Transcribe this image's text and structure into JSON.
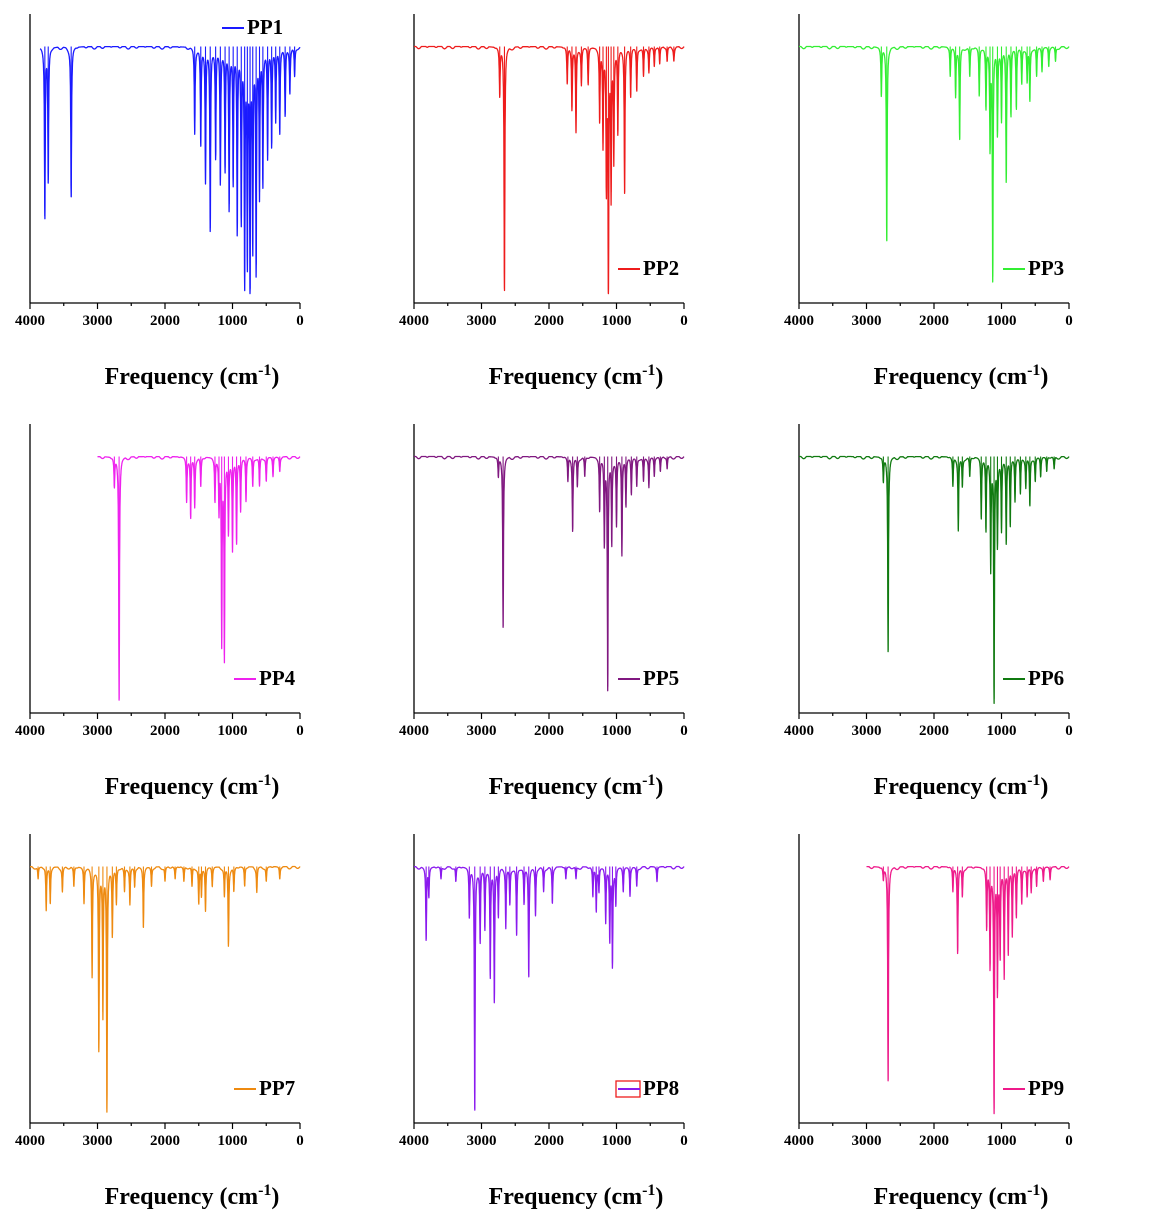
{
  "xlabel_prefix": "Frequency (cm",
  "xlabel_exp": "-1",
  "xlabel_suffix": ")",
  "chart_data": [
    {
      "type": "line",
      "series": [
        {
          "name": "PP1",
          "color": "#1a1aff"
        }
      ],
      "xlim": [
        4000,
        0
      ],
      "ylim": [
        0,
        1
      ],
      "reversed_x": true,
      "x_ticks": [
        "4000",
        "3000",
        "2000",
        "1000",
        "0"
      ],
      "legend_position": "top-right",
      "data_range": [
        3850,
        0
      ],
      "peaks": [
        [
          3780,
          0.7
        ],
        [
          3730,
          0.55
        ],
        [
          3390,
          0.62
        ],
        [
          1560,
          0.35
        ],
        [
          1470,
          0.4
        ],
        [
          1400,
          0.55
        ],
        [
          1330,
          0.75
        ],
        [
          1250,
          0.45
        ],
        [
          1180,
          0.55
        ],
        [
          1110,
          0.5
        ],
        [
          1050,
          0.65
        ],
        [
          990,
          0.55
        ],
        [
          930,
          0.75
        ],
        [
          870,
          0.7
        ],
        [
          820,
          0.95
        ],
        [
          780,
          0.85
        ],
        [
          740,
          1.0
        ],
        [
          700,
          0.8
        ],
        [
          650,
          0.9
        ],
        [
          600,
          0.6
        ],
        [
          550,
          0.55
        ],
        [
          480,
          0.45
        ],
        [
          420,
          0.4
        ],
        [
          360,
          0.3
        ],
        [
          300,
          0.35
        ],
        [
          220,
          0.28
        ],
        [
          150,
          0.18
        ],
        [
          80,
          0.12
        ]
      ]
    },
    {
      "type": "line",
      "series": [
        {
          "name": "PP2",
          "color": "#ee1c1c"
        }
      ],
      "xlim": [
        4000,
        0
      ],
      "ylim": [
        0,
        1
      ],
      "reversed_x": true,
      "x_ticks": [
        "4000",
        "3000",
        "2000",
        "1000",
        "0"
      ],
      "legend_position": "bottom-right",
      "data_range": [
        4000,
        0
      ],
      "peaks": [
        [
          2730,
          0.2
        ],
        [
          2660,
          1.0
        ],
        [
          1730,
          0.15
        ],
        [
          1660,
          0.25
        ],
        [
          1600,
          0.35
        ],
        [
          1520,
          0.15
        ],
        [
          1420,
          0.15
        ],
        [
          1250,
          0.3
        ],
        [
          1200,
          0.4
        ],
        [
          1150,
          0.55
        ],
        [
          1120,
          1.02
        ],
        [
          1080,
          0.6
        ],
        [
          1040,
          0.45
        ],
        [
          980,
          0.35
        ],
        [
          880,
          0.6
        ],
        [
          790,
          0.2
        ],
        [
          700,
          0.18
        ],
        [
          600,
          0.12
        ],
        [
          520,
          0.1
        ],
        [
          440,
          0.08
        ],
        [
          360,
          0.07
        ],
        [
          250,
          0.06
        ],
        [
          150,
          0.05
        ]
      ]
    },
    {
      "type": "line",
      "series": [
        {
          "name": "PP3",
          "color": "#33ee33"
        }
      ],
      "xlim": [
        4000,
        0
      ],
      "ylim": [
        0,
        1
      ],
      "reversed_x": true,
      "x_ticks": [
        "4000",
        "3000",
        "2000",
        "1000",
        "0"
      ],
      "legend_position": "bottom-right",
      "data_range": [
        4000,
        0
      ],
      "peaks": [
        [
          2780,
          0.2
        ],
        [
          2700,
          0.8
        ],
        [
          1760,
          0.12
        ],
        [
          1680,
          0.2
        ],
        [
          1620,
          0.38
        ],
        [
          1470,
          0.12
        ],
        [
          1330,
          0.2
        ],
        [
          1230,
          0.25
        ],
        [
          1170,
          0.4
        ],
        [
          1130,
          0.95
        ],
        [
          1060,
          0.35
        ],
        [
          1000,
          0.3
        ],
        [
          930,
          0.55
        ],
        [
          860,
          0.28
        ],
        [
          780,
          0.25
        ],
        [
          700,
          0.15
        ],
        [
          620,
          0.14
        ],
        [
          580,
          0.22
        ],
        [
          480,
          0.12
        ],
        [
          400,
          0.1
        ],
        [
          300,
          0.08
        ],
        [
          200,
          0.06
        ]
      ]
    },
    {
      "type": "line",
      "series": [
        {
          "name": "PP4",
          "color": "#ee22ee"
        }
      ],
      "xlim": [
        4000,
        0
      ],
      "ylim": [
        0,
        1
      ],
      "reversed_x": true,
      "x_ticks": [
        "4000",
        "3000",
        "2000",
        "1000",
        "0"
      ],
      "legend_position": "bottom-right",
      "data_range": [
        3000,
        0
      ],
      "peaks": [
        [
          2750,
          0.12
        ],
        [
          2680,
          1.0
        ],
        [
          1680,
          0.18
        ],
        [
          1620,
          0.25
        ],
        [
          1560,
          0.2
        ],
        [
          1470,
          0.12
        ],
        [
          1260,
          0.18
        ],
        [
          1200,
          0.22
        ],
        [
          1160,
          0.75
        ],
        [
          1120,
          0.82
        ],
        [
          1060,
          0.3
        ],
        [
          1000,
          0.38
        ],
        [
          940,
          0.35
        ],
        [
          880,
          0.22
        ],
        [
          800,
          0.18
        ],
        [
          700,
          0.12
        ],
        [
          600,
          0.12
        ],
        [
          500,
          0.1
        ],
        [
          400,
          0.08
        ],
        [
          300,
          0.06
        ]
      ]
    },
    {
      "type": "line",
      "series": [
        {
          "name": "PP5",
          "color": "#801880"
        }
      ],
      "xlim": [
        4000,
        0
      ],
      "ylim": [
        0,
        1
      ],
      "reversed_x": true,
      "x_ticks": [
        "4000",
        "3000",
        "2000",
        "1000",
        "0"
      ],
      "legend_position": "bottom-right",
      "data_range": [
        4000,
        0
      ],
      "peaks": [
        [
          2750,
          0.08
        ],
        [
          2680,
          0.7
        ],
        [
          1720,
          0.1
        ],
        [
          1650,
          0.3
        ],
        [
          1580,
          0.12
        ],
        [
          1470,
          0.08
        ],
        [
          1250,
          0.22
        ],
        [
          1180,
          0.35
        ],
        [
          1130,
          0.95
        ],
        [
          1070,
          0.35
        ],
        [
          1000,
          0.28
        ],
        [
          920,
          0.4
        ],
        [
          860,
          0.2
        ],
        [
          780,
          0.15
        ],
        [
          700,
          0.12
        ],
        [
          600,
          0.1
        ],
        [
          520,
          0.12
        ],
        [
          440,
          0.08
        ],
        [
          350,
          0.06
        ],
        [
          250,
          0.05
        ]
      ]
    },
    {
      "type": "line",
      "series": [
        {
          "name": "PP6",
          "color": "#107a10"
        }
      ],
      "xlim": [
        4000,
        0
      ],
      "ylim": [
        0,
        1
      ],
      "reversed_x": true,
      "x_ticks": [
        "4000",
        "3000",
        "2000",
        "1000",
        "0"
      ],
      "legend_position": "bottom-right",
      "data_range": [
        4000,
        0
      ],
      "peaks": [
        [
          2750,
          0.1
        ],
        [
          2680,
          0.8
        ],
        [
          1720,
          0.12
        ],
        [
          1640,
          0.3
        ],
        [
          1580,
          0.12
        ],
        [
          1470,
          0.08
        ],
        [
          1300,
          0.25
        ],
        [
          1230,
          0.3
        ],
        [
          1160,
          0.45
        ],
        [
          1110,
          1.0
        ],
        [
          1060,
          0.35
        ],
        [
          1000,
          0.3
        ],
        [
          930,
          0.35
        ],
        [
          870,
          0.28
        ],
        [
          800,
          0.18
        ],
        [
          720,
          0.15
        ],
        [
          640,
          0.12
        ],
        [
          580,
          0.2
        ],
        [
          500,
          0.1
        ],
        [
          420,
          0.08
        ],
        [
          330,
          0.06
        ],
        [
          220,
          0.05
        ]
      ]
    },
    {
      "type": "line",
      "series": [
        {
          "name": "PP7",
          "color": "#ee8a10"
        }
      ],
      "xlim": [
        4000,
        0
      ],
      "ylim": [
        0,
        1
      ],
      "reversed_x": true,
      "x_ticks": [
        "4000",
        "3000",
        "2000",
        "1000",
        "0"
      ],
      "legend_position": "bottom-right",
      "data_range": [
        4000,
        0
      ],
      "peaks": [
        [
          3880,
          0.05
        ],
        [
          3760,
          0.18
        ],
        [
          3700,
          0.15
        ],
        [
          3520,
          0.1
        ],
        [
          3350,
          0.08
        ],
        [
          3200,
          0.15
        ],
        [
          3080,
          0.45
        ],
        [
          2980,
          0.75
        ],
        [
          2920,
          0.6
        ],
        [
          2860,
          1.0
        ],
        [
          2780,
          0.28
        ],
        [
          2720,
          0.15
        ],
        [
          2600,
          0.1
        ],
        [
          2520,
          0.15
        ],
        [
          2450,
          0.08
        ],
        [
          2320,
          0.25
        ],
        [
          2200,
          0.08
        ],
        [
          2000,
          0.06
        ],
        [
          1850,
          0.05
        ],
        [
          1720,
          0.06
        ],
        [
          1600,
          0.08
        ],
        [
          1500,
          0.15
        ],
        [
          1460,
          0.12
        ],
        [
          1400,
          0.18
        ],
        [
          1300,
          0.08
        ],
        [
          1120,
          0.12
        ],
        [
          1060,
          0.32
        ],
        [
          980,
          0.1
        ],
        [
          820,
          0.08
        ],
        [
          640,
          0.1
        ],
        [
          500,
          0.06
        ],
        [
          300,
          0.05
        ]
      ]
    },
    {
      "type": "line",
      "series": [
        {
          "name": "PP8",
          "color": "#8a1aee"
        }
      ],
      "xlim": [
        4000,
        0
      ],
      "ylim": [
        0,
        1
      ],
      "reversed_x": true,
      "x_ticks": [
        "4000",
        "3000",
        "2000",
        "1000",
        "0"
      ],
      "legend_position": "bottom-right",
      "data_range": [
        4000,
        0
      ],
      "peaks": [
        [
          3820,
          0.3
        ],
        [
          3780,
          0.12
        ],
        [
          3600,
          0.05
        ],
        [
          3380,
          0.06
        ],
        [
          3180,
          0.2
        ],
        [
          3100,
          1.0
        ],
        [
          3020,
          0.3
        ],
        [
          2950,
          0.25
        ],
        [
          2870,
          0.45
        ],
        [
          2810,
          0.55
        ],
        [
          2750,
          0.2
        ],
        [
          2640,
          0.25
        ],
        [
          2580,
          0.15
        ],
        [
          2480,
          0.28
        ],
        [
          2370,
          0.15
        ],
        [
          2300,
          0.45
        ],
        [
          2200,
          0.2
        ],
        [
          2080,
          0.1
        ],
        [
          1950,
          0.15
        ],
        [
          1750,
          0.05
        ],
        [
          1600,
          0.05
        ],
        [
          1350,
          0.12
        ],
        [
          1300,
          0.18
        ],
        [
          1260,
          0.1
        ],
        [
          1160,
          0.22
        ],
        [
          1100,
          0.3
        ],
        [
          1060,
          0.4
        ],
        [
          1010,
          0.15
        ],
        [
          900,
          0.1
        ],
        [
          800,
          0.12
        ],
        [
          700,
          0.08
        ],
        [
          400,
          0.06
        ]
      ]
    },
    {
      "type": "line",
      "series": [
        {
          "name": "PP9",
          "color": "#ee1a8a"
        }
      ],
      "xlim": [
        4000,
        0
      ],
      "ylim": [
        0,
        1
      ],
      "reversed_x": true,
      "x_ticks": [
        "4000",
        "3000",
        "2000",
        "1000",
        "0"
      ],
      "legend_position": "bottom-right",
      "data_range": [
        3000,
        0
      ],
      "peaks": [
        [
          2750,
          0.05
        ],
        [
          2680,
          0.88
        ],
        [
          1720,
          0.1
        ],
        [
          1650,
          0.35
        ],
        [
          1580,
          0.12
        ],
        [
          1220,
          0.25
        ],
        [
          1170,
          0.4
        ],
        [
          1110,
          1.0
        ],
        [
          1060,
          0.5
        ],
        [
          1020,
          0.35
        ],
        [
          960,
          0.45
        ],
        [
          900,
          0.35
        ],
        [
          840,
          0.28
        ],
        [
          780,
          0.2
        ],
        [
          700,
          0.15
        ],
        [
          620,
          0.12
        ],
        [
          560,
          0.1
        ],
        [
          480,
          0.08
        ],
        [
          380,
          0.06
        ],
        [
          280,
          0.05
        ]
      ]
    }
  ]
}
